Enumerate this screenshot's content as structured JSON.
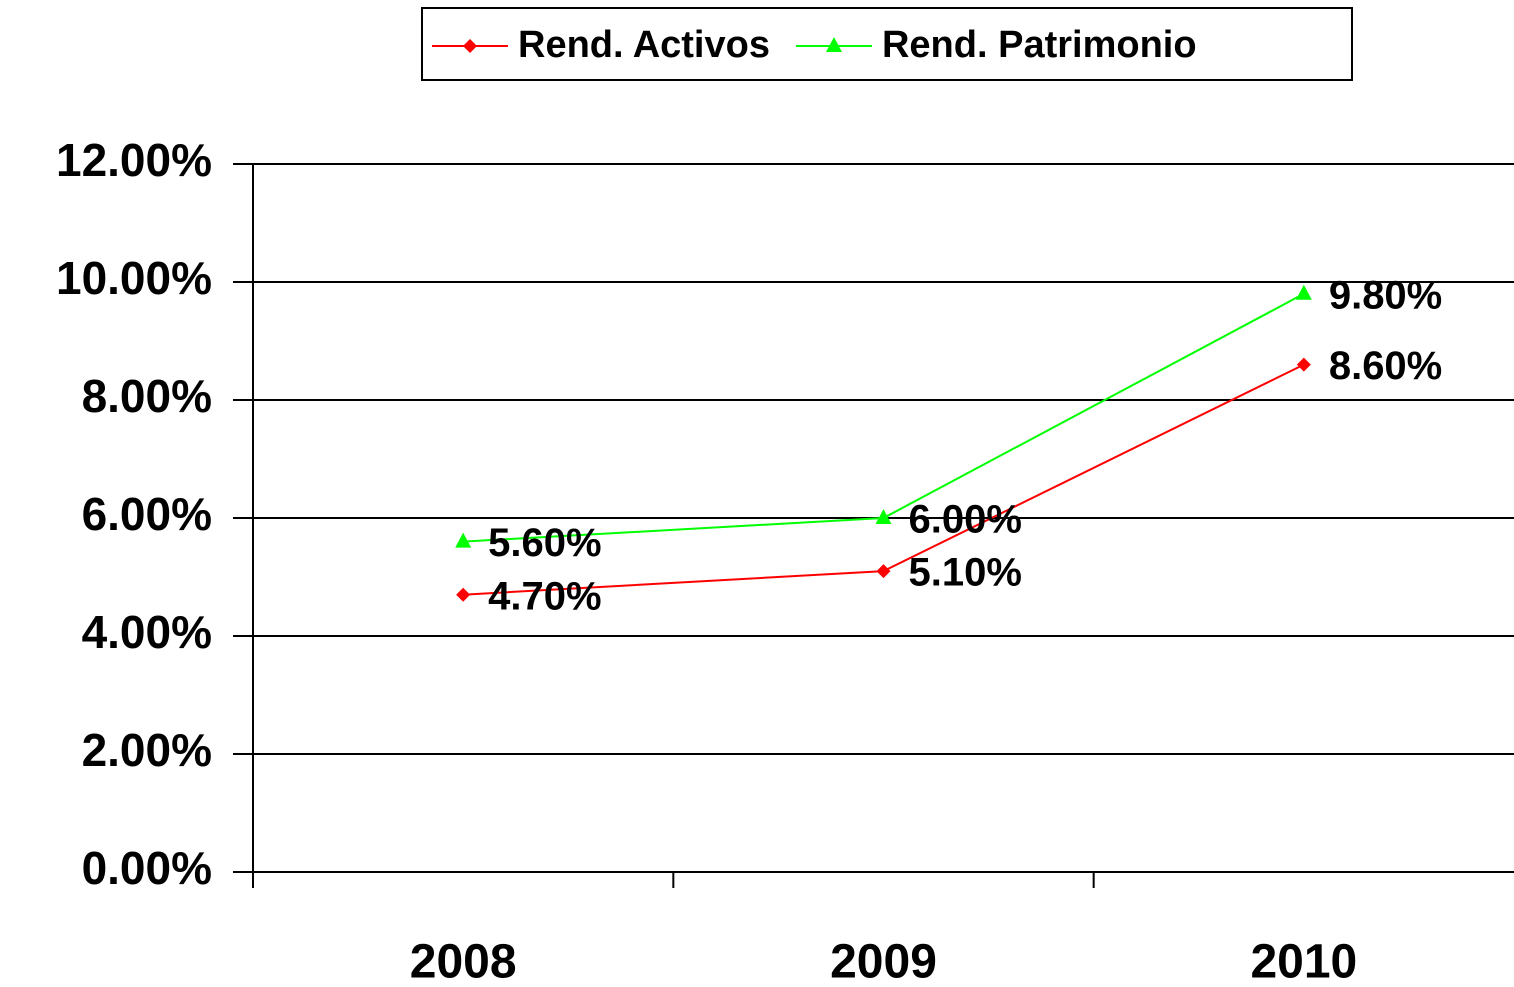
{
  "chart_data": {
    "type": "line",
    "categories": [
      "2008",
      "2009",
      "2010"
    ],
    "series": [
      {
        "name": "Rend. Activos",
        "color": "#ff0000",
        "marker": "diamond",
        "values": [
          4.7,
          5.1,
          8.6
        ],
        "value_labels": [
          "4.70%",
          "5.10%",
          "8.60%"
        ]
      },
      {
        "name": "Rend. Patrimonio",
        "color": "#00ff00",
        "marker": "triangle",
        "values": [
          5.6,
          6.0,
          9.8
        ],
        "value_labels": [
          "5.60%",
          "6.00%",
          "9.80%"
        ]
      }
    ],
    "ylim": [
      0,
      12
    ],
    "yticks": [
      {
        "value": 0,
        "label": "0.00%"
      },
      {
        "value": 2,
        "label": "2.00%"
      },
      {
        "value": 4,
        "label": "4.00%"
      },
      {
        "value": 6,
        "label": "6.00%"
      },
      {
        "value": 8,
        "label": "8.00%"
      },
      {
        "value": 10,
        "label": "10.00%"
      },
      {
        "value": 12,
        "label": "12.00%"
      }
    ],
    "grid": true,
    "legend": "top"
  }
}
